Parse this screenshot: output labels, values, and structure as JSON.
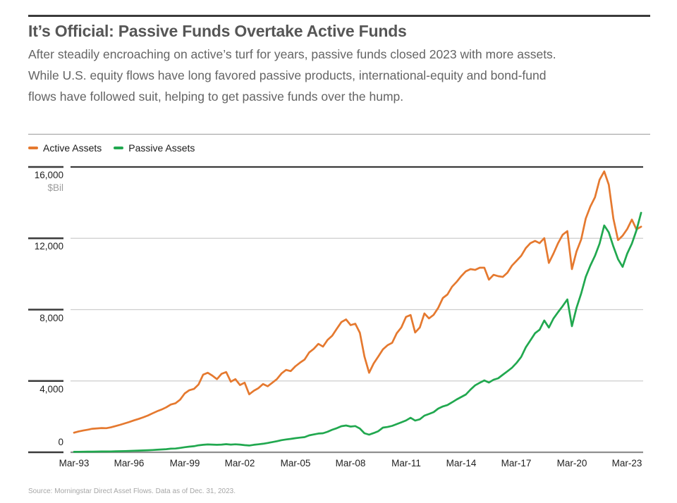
{
  "header": {
    "title": "It’s Official: Passive Funds Overtake Active Funds",
    "subtitle_lines": [
      "After steadily encroaching on active’s turf for years, passive funds closed 2023 with more assets.",
      "While U.S. equity flows have long favored passive products, international-equity and bond-fund",
      "flows have followed suit, helping to get passive funds over the hump."
    ]
  },
  "legend": [
    {
      "label": "Active Assets",
      "color": "#e5792f"
    },
    {
      "label": "Passive Assets",
      "color": "#21a84f"
    }
  ],
  "source": {
    "text": "Source: Morningstar Direct Asset Flows. Data as of Dec. 31, 2023."
  },
  "chart_data": {
    "type": "line",
    "title": "It’s Official: Passive Funds Overtake Active Funds",
    "ylabel_unit": "$Bil",
    "ylim": [
      0,
      16000
    ],
    "y_ticks": [
      16000,
      12000,
      8000,
      4000,
      0
    ],
    "y_tick_labels": [
      "16,000",
      "12,000",
      "8,000",
      "4,000",
      "0"
    ],
    "x_tick_labels": [
      "Mar-93",
      "Mar-96",
      "Mar-99",
      "Mar-02",
      "Mar-05",
      "Mar-08",
      "Mar-11",
      "Mar-14",
      "Mar-17",
      "Mar-20",
      "Mar-23"
    ],
    "x_start": "Mar-1993",
    "x_end": "Dec-2023",
    "frequency": "quarterly",
    "grid": "horizontal",
    "legend_position": "top-left",
    "series": [
      {
        "name": "Active Assets",
        "color": "#e5792f",
        "values": [
          1100,
          1170,
          1220,
          1270,
          1320,
          1340,
          1360,
          1350,
          1400,
          1470,
          1540,
          1620,
          1700,
          1790,
          1870,
          1960,
          2060,
          2180,
          2300,
          2400,
          2520,
          2680,
          2750,
          2950,
          3300,
          3480,
          3550,
          3800,
          4350,
          4460,
          4300,
          4100,
          4400,
          4500,
          3960,
          4100,
          3770,
          3905,
          3250,
          3450,
          3600,
          3830,
          3700,
          3900,
          4100,
          4420,
          4620,
          4550,
          4820,
          5020,
          5200,
          5600,
          5800,
          6080,
          5925,
          6300,
          6540,
          6930,
          7300,
          7450,
          7130,
          7210,
          6700,
          5370,
          4460,
          4980,
          5370,
          5770,
          6000,
          6140,
          6675,
          7000,
          7590,
          7700,
          6715,
          7000,
          7785,
          7510,
          7706,
          8100,
          8650,
          8850,
          9285,
          9560,
          9880,
          10150,
          10270,
          10230,
          10350,
          10350,
          9680,
          9950,
          9875,
          9835,
          10070,
          10470,
          10740,
          11020,
          11450,
          11730,
          11850,
          11730,
          12010,
          10620,
          11140,
          11730,
          12200,
          12400,
          10270,
          11260,
          11930,
          13110,
          13780,
          14300,
          15280,
          15750,
          15000,
          13100,
          11900,
          12150,
          12520,
          13050,
          12500,
          12650
        ]
      },
      {
        "name": "Passive Assets",
        "color": "#21a84f",
        "values": [
          25,
          28,
          31,
          34,
          37,
          39,
          42,
          45,
          49,
          55,
          61,
          68,
          76,
          85,
          94,
          104,
          115,
          128,
          142,
          158,
          175,
          200,
          210,
          245,
          285,
          315,
          340,
          390,
          420,
          440,
          430,
          420,
          430,
          455,
          430,
          445,
          430,
          400,
          380,
          420,
          445,
          480,
          520,
          570,
          620,
          680,
          720,
          750,
          790,
          820,
          850,
          948,
          1000,
          1050,
          1067,
          1150,
          1264,
          1350,
          1460,
          1500,
          1440,
          1470,
          1330,
          1067,
          988,
          1080,
          1180,
          1383,
          1420,
          1480,
          1580,
          1680,
          1780,
          1936,
          1778,
          1850,
          2054,
          2150,
          2252,
          2449,
          2570,
          2650,
          2800,
          2963,
          3100,
          3240,
          3515,
          3752,
          3900,
          4029,
          3910,
          4068,
          4150,
          4344,
          4540,
          4740,
          5017,
          5350,
          5886,
          6281,
          6675,
          6873,
          7390,
          6992,
          7500,
          7860,
          8200,
          8572,
          7070,
          8100,
          8900,
          9839,
          10470,
          11020,
          11700,
          12720,
          12330,
          11540,
          10830,
          10400,
          11140,
          11700,
          12446,
          13433
        ]
      }
    ]
  }
}
